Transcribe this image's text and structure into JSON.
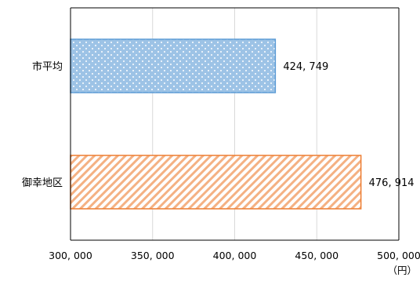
{
  "chart_data": {
    "type": "bar",
    "orientation": "horizontal",
    "categories": [
      "市平均",
      "御幸地区"
    ],
    "values": [
      424749,
      476914
    ],
    "value_labels": [
      "424, 749",
      "476, 914"
    ],
    "xlim": [
      300000,
      500000
    ],
    "x_ticks": [
      300000,
      350000,
      400000,
      450000,
      500000
    ],
    "x_tick_labels": [
      "300, 000",
      "350, 000",
      "400, 000",
      "450, 000",
      "500, 000"
    ],
    "unit": "（円）",
    "grid": "vertical",
    "bar_styles": [
      {
        "pattern": "dots",
        "fill": "#9dc3e6",
        "stroke": "#5b9bd5",
        "dot": "#ffffff"
      },
      {
        "pattern": "diagonal-stripes",
        "fill": "#ffffff",
        "stroke": "#ed7d31",
        "stripe": "#f4b183"
      }
    ],
    "gridline_color": "#d9d9d9",
    "axis_color": "#000000"
  }
}
